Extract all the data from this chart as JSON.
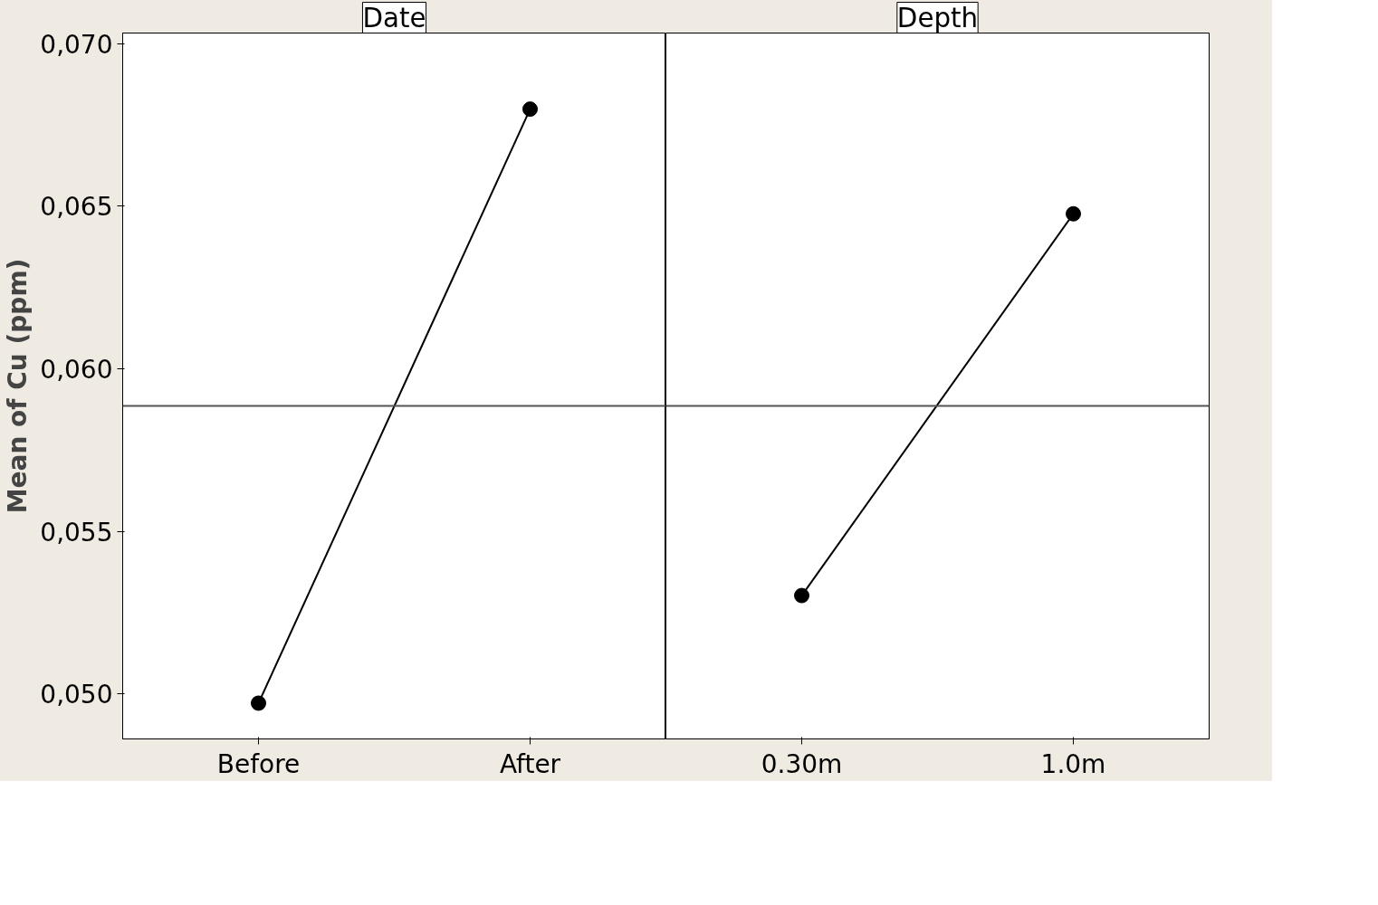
{
  "chart_data": [
    {
      "type": "line",
      "title": "Date",
      "ylabel": "Mean of Cu (ppm)",
      "categories": [
        "Before",
        "After"
      ],
      "series": [
        {
          "color": "#000000",
          "values": [
            0.04972,
            0.06799
          ]
        }
      ],
      "marker": "circle",
      "line_style": "solid",
      "grid": false,
      "ylim": [
        0.04862,
        0.07033
      ],
      "yticks": [
        {
          "value": 0.05,
          "label": "0,050"
        },
        {
          "value": 0.055,
          "label": "0,055"
        },
        {
          "value": 0.06,
          "label": "0,060"
        },
        {
          "value": 0.065,
          "label": "0,065"
        },
        {
          "value": 0.07,
          "label": "0,070"
        }
      ],
      "ref_lines": [
        {
          "axis": "y",
          "value": 0.05886,
          "color": "#555555"
        }
      ]
    },
    {
      "type": "line",
      "title": "Depth",
      "categories": [
        "0.30m",
        "1.0m"
      ],
      "series": [
        {
          "color": "#000000",
          "values": [
            0.05303,
            0.06477
          ]
        }
      ],
      "marker": "circle",
      "line_style": "solid",
      "grid": false,
      "ylim": [
        0.04862,
        0.07033
      ],
      "tick_labels": "x",
      "ref_lines": [
        {
          "axis": "y",
          "value": 0.05886,
          "color": "#555555"
        }
      ]
    }
  ]
}
